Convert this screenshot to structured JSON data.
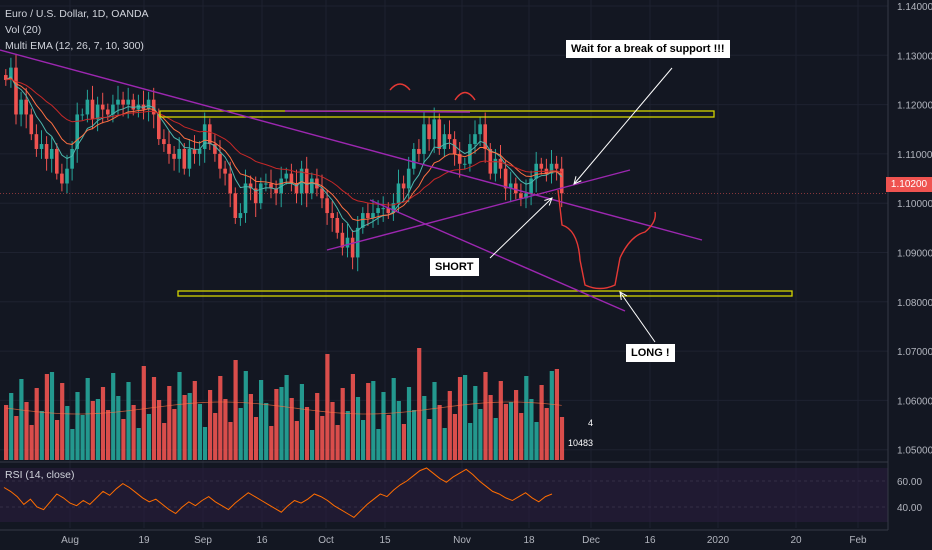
{
  "header": {
    "symbol": "Euro / U.S. Dollar, 1D, OANDA",
    "volume_study": "Vol (20)",
    "ema_study": "Multi EMA (12, 26, 7, 10, 300)",
    "rsi_study": "RSI (14, close)"
  },
  "annotations": {
    "wait": "Wait for a break of support !!!",
    "short": "SHORT",
    "long": "LONG !"
  },
  "price_tag": "1.10200",
  "colors": {
    "background": "#131722",
    "up": "#26a69a",
    "down": "#ef5350",
    "trendline": "#9c27b0",
    "support": "#d4d400",
    "ema_orange": "#ff7043",
    "ema_red": "#c62828",
    "ema_teal": "#4db6ac",
    "rsi": "#ff6d00",
    "drawing": "#e53935"
  },
  "chart_data": {
    "type": "candlestick",
    "title": "Euro / U.S. Dollar, 1D, OANDA",
    "x_ticks": [
      "Aug",
      "19",
      "Sep",
      "16",
      "Oct",
      "15",
      "Nov",
      "18",
      "Dec",
      "16",
      "2020",
      "20",
      "Feb"
    ],
    "y_ticks": [
      "1.14000",
      "1.13000",
      "1.12000",
      "1.11000",
      "1.10000",
      "1.09000",
      "1.08000",
      "1.07000",
      "1.06000",
      "1.05000"
    ],
    "ylim": [
      1.045,
      1.14
    ],
    "last_price": 1.102,
    "candle_closes": [
      1.125,
      1.1275,
      1.118,
      1.121,
      1.118,
      1.114,
      1.111,
      1.112,
      1.109,
      1.111,
      1.106,
      1.104,
      1.107,
      1.111,
      1.118,
      1.118,
      1.121,
      1.117,
      1.12,
      1.119,
      1.118,
      1.12,
      1.121,
      1.12,
      1.121,
      1.119,
      1.12,
      1.119,
      1.121,
      1.118,
      1.113,
      1.112,
      1.11,
      1.109,
      1.111,
      1.107,
      1.111,
      1.11,
      1.111,
      1.116,
      1.112,
      1.11,
      1.107,
      1.106,
      1.102,
      1.097,
      1.098,
      1.104,
      1.103,
      1.1,
      1.104,
      1.104,
      1.103,
      1.102,
      1.105,
      1.106,
      1.104,
      1.102,
      1.107,
      1.102,
      1.105,
      1.103,
      1.101,
      1.098,
      1.097,
      1.094,
      1.091,
      1.093,
      1.089,
      1.095,
      1.098,
      1.097,
      1.098,
      1.099,
      1.099,
      1.098,
      1.1,
      1.104,
      1.103,
      1.107,
      1.111,
      1.11,
      1.116,
      1.113,
      1.117,
      1.111,
      1.114,
      1.113,
      1.11,
      1.108,
      1.108,
      1.112,
      1.114,
      1.116,
      1.111,
      1.106,
      1.109,
      1.107,
      1.103,
      1.104,
      1.102,
      1.101,
      1.102,
      1.105,
      1.108,
      1.107,
      1.106,
      1.108,
      1.107,
      1.102
    ],
    "volume_ticks": [
      "4",
      "10483"
    ],
    "rsi_ticks": [
      "60.00",
      "40.00"
    ],
    "rsi_values": [
      55,
      52,
      48,
      42,
      46,
      40,
      38,
      44,
      50,
      47,
      43,
      41,
      45,
      42,
      47,
      52,
      49,
      54,
      58,
      55,
      51,
      47,
      44,
      46,
      42,
      38,
      35,
      40,
      44,
      41,
      45,
      48,
      44,
      41,
      38,
      43,
      47,
      51,
      48,
      45,
      42,
      39,
      36,
      41,
      45,
      43,
      46,
      50,
      48,
      45,
      41,
      38,
      35,
      32,
      37,
      42,
      46,
      50,
      48,
      53,
      57,
      60,
      64,
      68,
      70,
      66,
      62,
      59,
      63,
      66,
      69,
      65,
      60,
      56,
      52,
      50,
      47,
      45,
      48,
      51,
      47,
      44,
      48,
      50
    ],
    "grid": true
  }
}
